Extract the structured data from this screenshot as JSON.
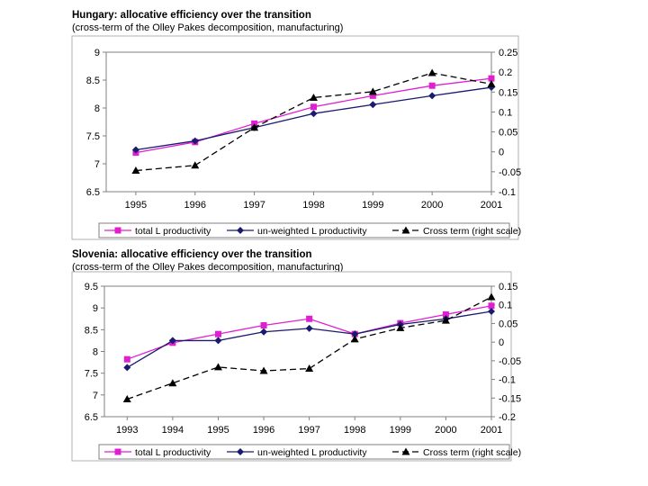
{
  "chart_data": [
    {
      "type": "line",
      "title": "Hungary:  allocative efficiency over the transition",
      "subtitle": "(cross-term of the Olley Pakes decomposition, manufacturing)",
      "categories": [
        "1995",
        "1996",
        "1997",
        "1998",
        "1999",
        "2000",
        "2001"
      ],
      "ylim": [
        6.5,
        9
      ],
      "yticks": [
        "6.5",
        "7",
        "7.5",
        "8",
        "8.5",
        "9"
      ],
      "y2lim": [
        -0.1,
        0.25
      ],
      "y2ticks": [
        "-0.1",
        "-0.05",
        "0",
        "0.05",
        "0.1",
        "0.15",
        "0.2",
        "0.25"
      ],
      "series": [
        {
          "name": "total L productivity",
          "axis": "left",
          "color": "#e020d0",
          "marker": "square",
          "dash": "",
          "values": [
            7.2,
            7.39,
            7.72,
            8.02,
            8.22,
            8.4,
            8.53
          ]
        },
        {
          "name": "un-weighted L productivity",
          "axis": "left",
          "color": "#1a1a6e",
          "marker": "diamond",
          "dash": "",
          "values": [
            7.25,
            7.41,
            7.65,
            7.9,
            8.06,
            8.22,
            8.37
          ]
        },
        {
          "name": "Cross term (right scale)",
          "axis": "right",
          "color": "#000000",
          "marker": "triangle",
          "dash": "7,4",
          "values": [
            -0.047,
            -0.034,
            0.061,
            0.136,
            0.151,
            0.198,
            0.17
          ]
        }
      ]
    },
    {
      "type": "line",
      "title": "Slovenia:  allocative efficiency over the transition",
      "subtitle": "(cross-term of the Olley Pakes decomposition, manufacturing)",
      "categories": [
        "1993",
        "1994",
        "1995",
        "1996",
        "1997",
        "1998",
        "1999",
        "2000",
        "2001"
      ],
      "ylim": [
        6.5,
        9.5
      ],
      "yticks": [
        "6.5",
        "7",
        "7.5",
        "8",
        "8.5",
        "9",
        "9.5"
      ],
      "y2lim": [
        -0.2,
        0.15
      ],
      "y2ticks": [
        "-0.2",
        "-0.15",
        "-0.1",
        "-0.05",
        "0",
        "0.05",
        "0.1",
        "0.15"
      ],
      "series": [
        {
          "name": "total L productivity",
          "axis": "left",
          "color": "#e020d0",
          "marker": "square",
          "dash": "",
          "values": [
            7.82,
            8.2,
            8.4,
            8.6,
            8.75,
            8.4,
            8.65,
            8.85,
            9.05
          ]
        },
        {
          "name": "un-weighted L productivity",
          "axis": "left",
          "color": "#1a1a6e",
          "marker": "diamond",
          "dash": "",
          "values": [
            7.63,
            8.25,
            8.25,
            8.45,
            8.53,
            8.4,
            8.62,
            8.75,
            8.92
          ]
        },
        {
          "name": "Cross term (right scale)",
          "axis": "right",
          "color": "#000000",
          "marker": "triangle",
          "dash": "7,4",
          "values": [
            -0.153,
            -0.11,
            -0.067,
            -0.077,
            -0.071,
            0.008,
            0.038,
            0.058,
            0.121
          ]
        }
      ]
    }
  ]
}
